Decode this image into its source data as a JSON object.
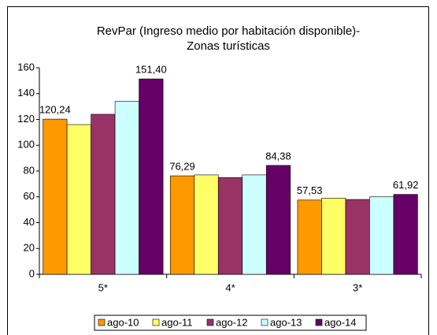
{
  "chart_data": {
    "type": "bar",
    "title": [
      "RevPar (Ingreso medio por habitación disponible)-",
      "Zonas turísticas"
    ],
    "categories": [
      "5*",
      "4*",
      "3*"
    ],
    "series": [
      {
        "name": "ago-10",
        "color": "#ff9900",
        "values": [
          120.24,
          76.29,
          57.53
        ],
        "value_labels": [
          "120,24",
          "76,29",
          "57,53"
        ]
      },
      {
        "name": "ago-11",
        "color": "#ffff66",
        "values": [
          116,
          77,
          59
        ]
      },
      {
        "name": "ago-12",
        "color": "#993366",
        "values": [
          124,
          75,
          58
        ]
      },
      {
        "name": "ago-13",
        "color": "#ccffff",
        "values": [
          134,
          77,
          60
        ]
      },
      {
        "name": "ago-14",
        "color": "#660066",
        "values": [
          151.4,
          84.38,
          61.92
        ],
        "value_labels": [
          "151,40",
          "84,38",
          "61,92"
        ]
      }
    ],
    "ylim": [
      0,
      160
    ],
    "yticks": [
      0,
      20,
      40,
      60,
      80,
      100,
      120,
      140,
      160
    ],
    "grid": false,
    "legend": "bottom"
  }
}
